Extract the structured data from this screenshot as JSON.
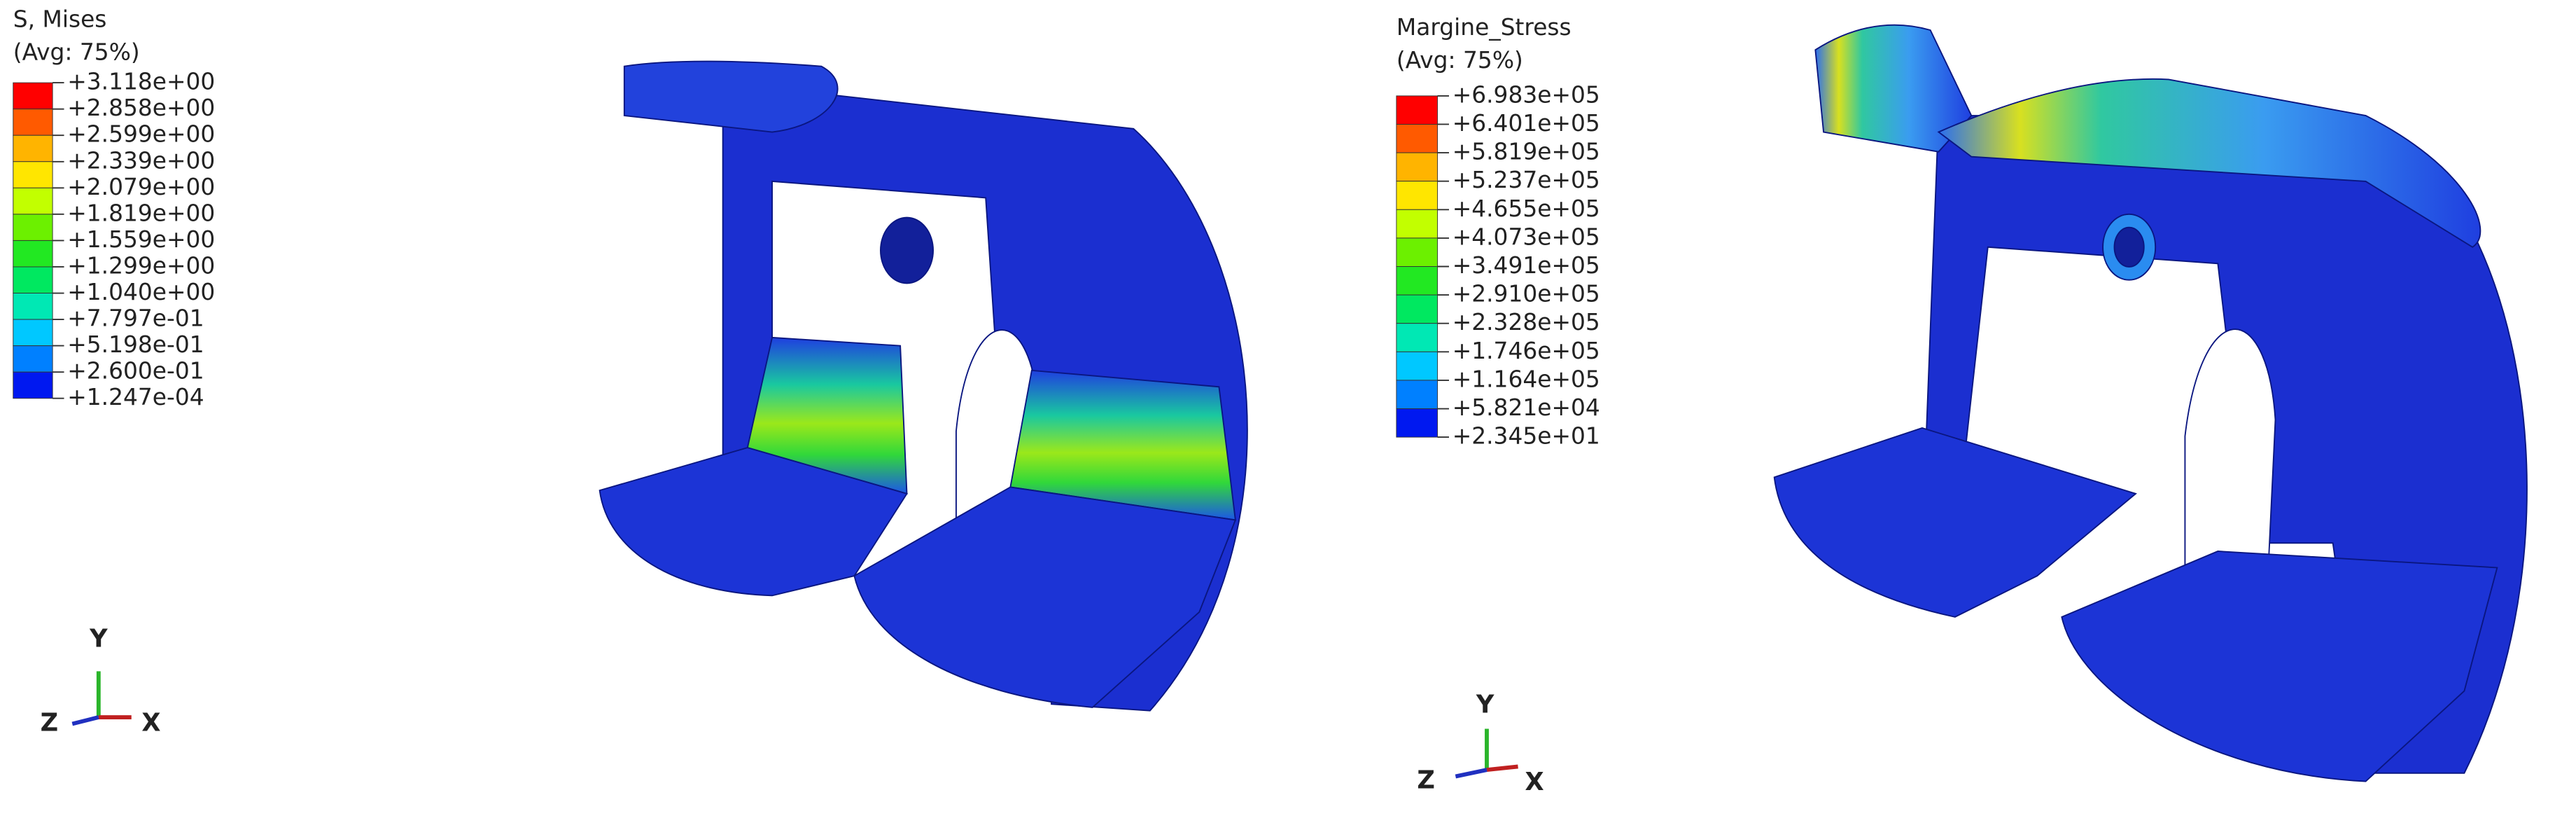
{
  "left_plot": {
    "legend": {
      "title": "S, Mises",
      "subtitle": "(Avg: 75%)",
      "labels": [
        "+3.118e+00",
        "+2.858e+00",
        "+2.599e+00",
        "+2.339e+00",
        "+2.079e+00",
        "+1.819e+00",
        "+1.559e+00",
        "+1.299e+00",
        "+1.040e+00",
        "+7.797e-01",
        "+5.198e-01",
        "+2.600e-01",
        "+1.247e-04"
      ]
    },
    "triad": {
      "y": "Y",
      "z": "Z",
      "x": "X"
    }
  },
  "right_plot": {
    "legend": {
      "title": "Margine_Stress",
      "subtitle": "(Avg: 75%)",
      "labels": [
        "+6.983e+05",
        "+6.401e+05",
        "+5.819e+05",
        "+5.237e+05",
        "+4.655e+05",
        "+4.073e+05",
        "+3.491e+05",
        "+2.910e+05",
        "+2.328e+05",
        "+1.746e+05",
        "+1.164e+05",
        "+5.821e+04",
        "+2.345e+01"
      ]
    },
    "triad": {
      "y": "Y",
      "z": "Z",
      "x": "X"
    }
  }
}
